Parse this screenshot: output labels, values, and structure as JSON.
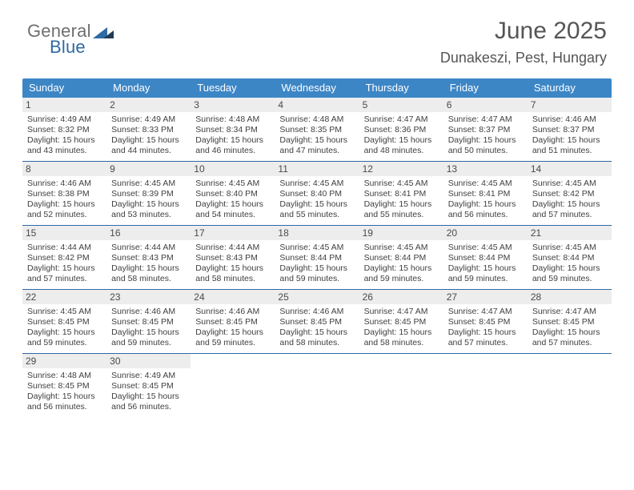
{
  "logo": {
    "word1": "General",
    "word2": "Blue"
  },
  "title": "June 2025",
  "location": "Dunakeszi, Pest, Hungary",
  "colors": {
    "header_bg": "#3d86c6",
    "header_text": "#ffffff",
    "week_divider": "#2d6aa3",
    "daynum_bg": "#ededed",
    "body_text": "#3f3f3f",
    "title_text": "#555555",
    "logo_gray": "#6f6f6f",
    "logo_blue": "#2f6aa5"
  },
  "weekdays": [
    "Sunday",
    "Monday",
    "Tuesday",
    "Wednesday",
    "Thursday",
    "Friday",
    "Saturday"
  ],
  "weeks": [
    [
      {
        "num": "1",
        "sunrise": "Sunrise: 4:49 AM",
        "sunset": "Sunset: 8:32 PM",
        "day1": "Daylight: 15 hours",
        "day2": "and 43 minutes."
      },
      {
        "num": "2",
        "sunrise": "Sunrise: 4:49 AM",
        "sunset": "Sunset: 8:33 PM",
        "day1": "Daylight: 15 hours",
        "day2": "and 44 minutes."
      },
      {
        "num": "3",
        "sunrise": "Sunrise: 4:48 AM",
        "sunset": "Sunset: 8:34 PM",
        "day1": "Daylight: 15 hours",
        "day2": "and 46 minutes."
      },
      {
        "num": "4",
        "sunrise": "Sunrise: 4:48 AM",
        "sunset": "Sunset: 8:35 PM",
        "day1": "Daylight: 15 hours",
        "day2": "and 47 minutes."
      },
      {
        "num": "5",
        "sunrise": "Sunrise: 4:47 AM",
        "sunset": "Sunset: 8:36 PM",
        "day1": "Daylight: 15 hours",
        "day2": "and 48 minutes."
      },
      {
        "num": "6",
        "sunrise": "Sunrise: 4:47 AM",
        "sunset": "Sunset: 8:37 PM",
        "day1": "Daylight: 15 hours",
        "day2": "and 50 minutes."
      },
      {
        "num": "7",
        "sunrise": "Sunrise: 4:46 AM",
        "sunset": "Sunset: 8:37 PM",
        "day1": "Daylight: 15 hours",
        "day2": "and 51 minutes."
      }
    ],
    [
      {
        "num": "8",
        "sunrise": "Sunrise: 4:46 AM",
        "sunset": "Sunset: 8:38 PM",
        "day1": "Daylight: 15 hours",
        "day2": "and 52 minutes."
      },
      {
        "num": "9",
        "sunrise": "Sunrise: 4:45 AM",
        "sunset": "Sunset: 8:39 PM",
        "day1": "Daylight: 15 hours",
        "day2": "and 53 minutes."
      },
      {
        "num": "10",
        "sunrise": "Sunrise: 4:45 AM",
        "sunset": "Sunset: 8:40 PM",
        "day1": "Daylight: 15 hours",
        "day2": "and 54 minutes."
      },
      {
        "num": "11",
        "sunrise": "Sunrise: 4:45 AM",
        "sunset": "Sunset: 8:40 PM",
        "day1": "Daylight: 15 hours",
        "day2": "and 55 minutes."
      },
      {
        "num": "12",
        "sunrise": "Sunrise: 4:45 AM",
        "sunset": "Sunset: 8:41 PM",
        "day1": "Daylight: 15 hours",
        "day2": "and 55 minutes."
      },
      {
        "num": "13",
        "sunrise": "Sunrise: 4:45 AM",
        "sunset": "Sunset: 8:41 PM",
        "day1": "Daylight: 15 hours",
        "day2": "and 56 minutes."
      },
      {
        "num": "14",
        "sunrise": "Sunrise: 4:45 AM",
        "sunset": "Sunset: 8:42 PM",
        "day1": "Daylight: 15 hours",
        "day2": "and 57 minutes."
      }
    ],
    [
      {
        "num": "15",
        "sunrise": "Sunrise: 4:44 AM",
        "sunset": "Sunset: 8:42 PM",
        "day1": "Daylight: 15 hours",
        "day2": "and 57 minutes."
      },
      {
        "num": "16",
        "sunrise": "Sunrise: 4:44 AM",
        "sunset": "Sunset: 8:43 PM",
        "day1": "Daylight: 15 hours",
        "day2": "and 58 minutes."
      },
      {
        "num": "17",
        "sunrise": "Sunrise: 4:44 AM",
        "sunset": "Sunset: 8:43 PM",
        "day1": "Daylight: 15 hours",
        "day2": "and 58 minutes."
      },
      {
        "num": "18",
        "sunrise": "Sunrise: 4:45 AM",
        "sunset": "Sunset: 8:44 PM",
        "day1": "Daylight: 15 hours",
        "day2": "and 59 minutes."
      },
      {
        "num": "19",
        "sunrise": "Sunrise: 4:45 AM",
        "sunset": "Sunset: 8:44 PM",
        "day1": "Daylight: 15 hours",
        "day2": "and 59 minutes."
      },
      {
        "num": "20",
        "sunrise": "Sunrise: 4:45 AM",
        "sunset": "Sunset: 8:44 PM",
        "day1": "Daylight: 15 hours",
        "day2": "and 59 minutes."
      },
      {
        "num": "21",
        "sunrise": "Sunrise: 4:45 AM",
        "sunset": "Sunset: 8:44 PM",
        "day1": "Daylight: 15 hours",
        "day2": "and 59 minutes."
      }
    ],
    [
      {
        "num": "22",
        "sunrise": "Sunrise: 4:45 AM",
        "sunset": "Sunset: 8:45 PM",
        "day1": "Daylight: 15 hours",
        "day2": "and 59 minutes."
      },
      {
        "num": "23",
        "sunrise": "Sunrise: 4:46 AM",
        "sunset": "Sunset: 8:45 PM",
        "day1": "Daylight: 15 hours",
        "day2": "and 59 minutes."
      },
      {
        "num": "24",
        "sunrise": "Sunrise: 4:46 AM",
        "sunset": "Sunset: 8:45 PM",
        "day1": "Daylight: 15 hours",
        "day2": "and 59 minutes."
      },
      {
        "num": "25",
        "sunrise": "Sunrise: 4:46 AM",
        "sunset": "Sunset: 8:45 PM",
        "day1": "Daylight: 15 hours",
        "day2": "and 58 minutes."
      },
      {
        "num": "26",
        "sunrise": "Sunrise: 4:47 AM",
        "sunset": "Sunset: 8:45 PM",
        "day1": "Daylight: 15 hours",
        "day2": "and 58 minutes."
      },
      {
        "num": "27",
        "sunrise": "Sunrise: 4:47 AM",
        "sunset": "Sunset: 8:45 PM",
        "day1": "Daylight: 15 hours",
        "day2": "and 57 minutes."
      },
      {
        "num": "28",
        "sunrise": "Sunrise: 4:47 AM",
        "sunset": "Sunset: 8:45 PM",
        "day1": "Daylight: 15 hours",
        "day2": "and 57 minutes."
      }
    ],
    [
      {
        "num": "29",
        "sunrise": "Sunrise: 4:48 AM",
        "sunset": "Sunset: 8:45 PM",
        "day1": "Daylight: 15 hours",
        "day2": "and 56 minutes."
      },
      {
        "num": "30",
        "sunrise": "Sunrise: 4:49 AM",
        "sunset": "Sunset: 8:45 PM",
        "day1": "Daylight: 15 hours",
        "day2": "and 56 minutes."
      },
      {
        "empty": true
      },
      {
        "empty": true
      },
      {
        "empty": true
      },
      {
        "empty": true
      },
      {
        "empty": true
      }
    ]
  ]
}
